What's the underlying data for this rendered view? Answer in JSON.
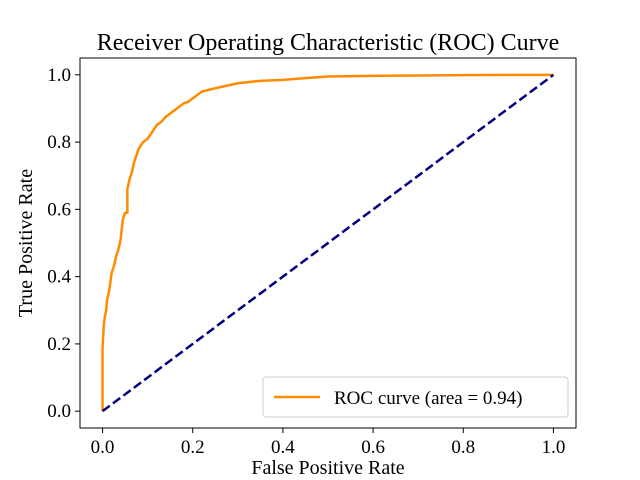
{
  "chart_data": {
    "type": "line",
    "title": "Receiver Operating Characteristic (ROC) Curve",
    "xlabel": "False Positive Rate",
    "ylabel": "True Positive Rate",
    "xlim": [
      -0.05,
      1.05
    ],
    "ylim": [
      -0.05,
      1.05
    ],
    "x_ticks": [
      0.0,
      0.2,
      0.4,
      0.6,
      0.8,
      1.0
    ],
    "y_ticks": [
      0.0,
      0.2,
      0.4,
      0.6,
      0.8,
      1.0
    ],
    "x_tick_labels": [
      "0.0",
      "0.2",
      "0.4",
      "0.6",
      "0.8",
      "1.0"
    ],
    "y_tick_labels": [
      "0.0",
      "0.2",
      "0.4",
      "0.6",
      "0.8",
      "1.0"
    ],
    "grid": false,
    "legend_position": "lower-right",
    "series": [
      {
        "name": "ROC curve (area = 0.94)",
        "color": "#ff8c00",
        "style": "solid",
        "x": [
          0.0,
          0.0,
          0.003,
          0.005,
          0.008,
          0.01,
          0.015,
          0.02,
          0.025,
          0.03,
          0.035,
          0.04,
          0.045,
          0.05,
          0.055,
          0.055,
          0.06,
          0.065,
          0.07,
          0.075,
          0.08,
          0.085,
          0.09,
          0.1,
          0.11,
          0.12,
          0.13,
          0.14,
          0.15,
          0.16,
          0.17,
          0.18,
          0.19,
          0.2,
          0.21,
          0.22,
          0.25,
          0.3,
          0.35,
          0.4,
          0.45,
          0.48,
          0.5,
          0.6,
          0.7,
          0.8,
          0.9,
          1.0
        ],
        "y": [
          0.0,
          0.19,
          0.26,
          0.28,
          0.3,
          0.33,
          0.36,
          0.41,
          0.43,
          0.46,
          0.48,
          0.51,
          0.57,
          0.59,
          0.59,
          0.66,
          0.69,
          0.71,
          0.74,
          0.76,
          0.78,
          0.79,
          0.8,
          0.81,
          0.83,
          0.85,
          0.86,
          0.875,
          0.885,
          0.895,
          0.905,
          0.915,
          0.92,
          0.93,
          0.94,
          0.95,
          0.96,
          0.975,
          0.982,
          0.985,
          0.99,
          0.993,
          0.995,
          0.997,
          0.998,
          0.999,
          1.0,
          1.0
        ]
      },
      {
        "name": "",
        "color": "#000080",
        "style": "dashed",
        "x": [
          0.0,
          1.0
        ],
        "y": [
          0.0,
          1.0
        ]
      }
    ]
  }
}
